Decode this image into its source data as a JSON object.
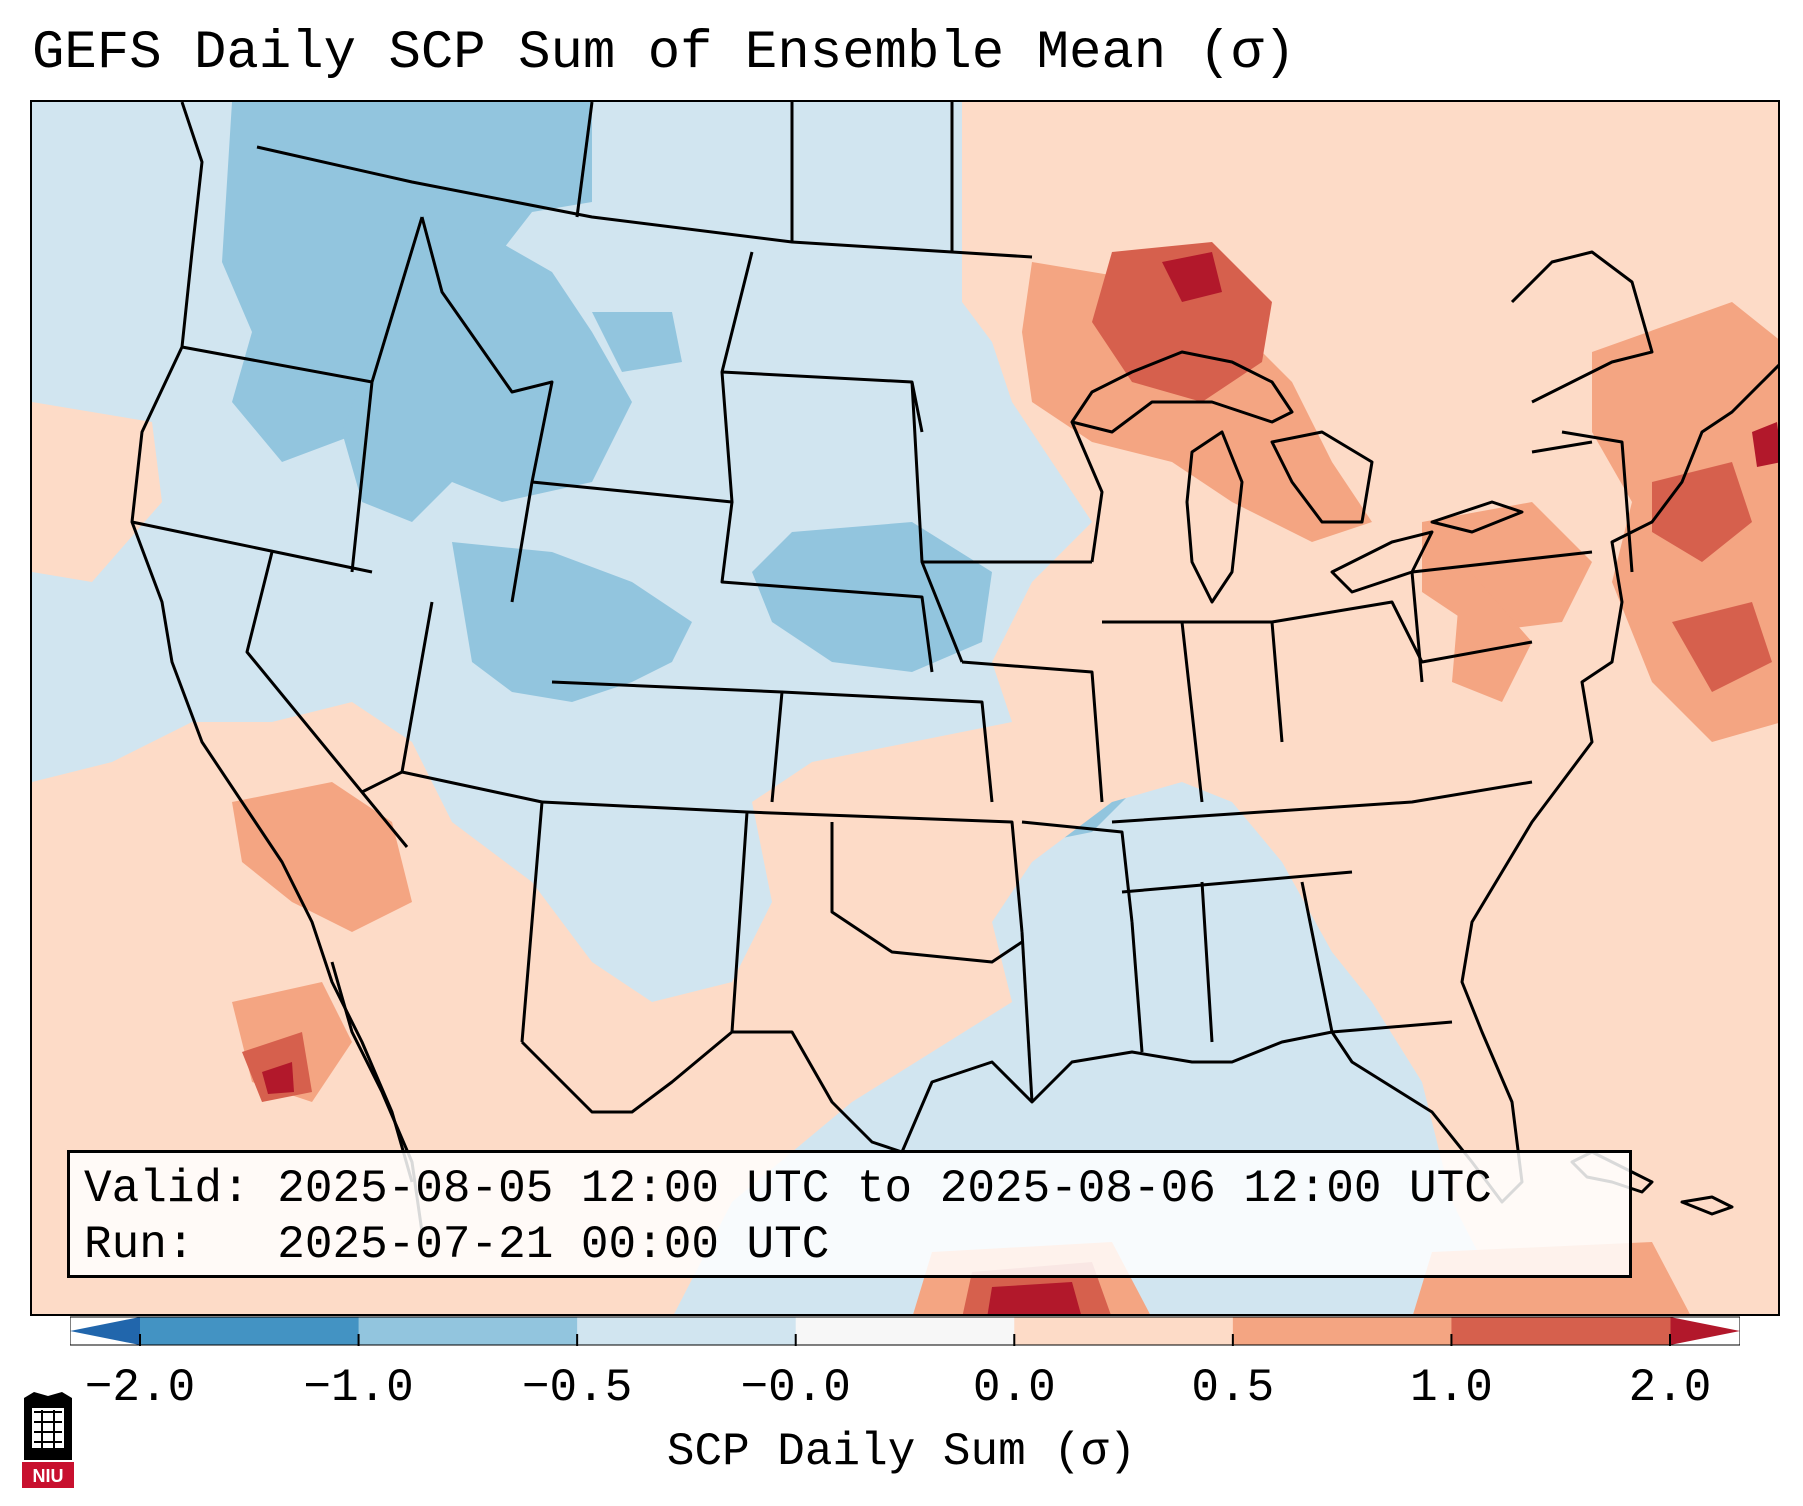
{
  "header": {
    "title": "GEFS Daily SCP Sum of Ensemble Mean (σ)"
  },
  "info_box": {
    "valid_label": "Valid:",
    "valid_value": "2025-08-05 12:00 UTC to 2025-08-06 12:00 UTC",
    "run_label": "Run:",
    "run_value": "2025-07-21 00:00 UTC"
  },
  "colorbar": {
    "title": "SCP Daily Sum (σ)",
    "ticks": [
      "−2.0",
      "−1.0",
      "−0.5",
      "−0.0",
      "0.0",
      "0.5",
      "1.0",
      "2.0"
    ],
    "bins": [
      "#2166ac",
      "#4393c3",
      "#92c5de",
      "#d1e5f0",
      "#fddbc7",
      "#f4a582",
      "#d6604d",
      "#b2182b"
    ]
  },
  "map": {
    "background_color": "#d1e5f0",
    "region": "Continental United States, southern Canada, northern Mexico, Gulf of Mexico",
    "anomalies": [
      {
        "area": "Northern Rockies / Pacific Northwest",
        "category": "-1.0 to -0.5"
      },
      {
        "area": "Central Plains (Kansas/Nebraska)",
        "category": "-1.0 to -0.5"
      },
      {
        "area": "Upper Great Lakes / Ontario",
        "category": "0.5 to 2.0"
      },
      {
        "area": "Mid-Atlantic / Northeast",
        "category": "0.5 to 2.0"
      },
      {
        "area": "Desert Southwest / Baja",
        "category": "0.5 to 2.0"
      },
      {
        "area": "Northwest Atlantic offshore",
        "category": "0.5 to 2.0"
      }
    ]
  },
  "logo": {
    "text": "NIU",
    "colors": {
      "primary": "#c8102e",
      "secondary": "#000000"
    }
  }
}
